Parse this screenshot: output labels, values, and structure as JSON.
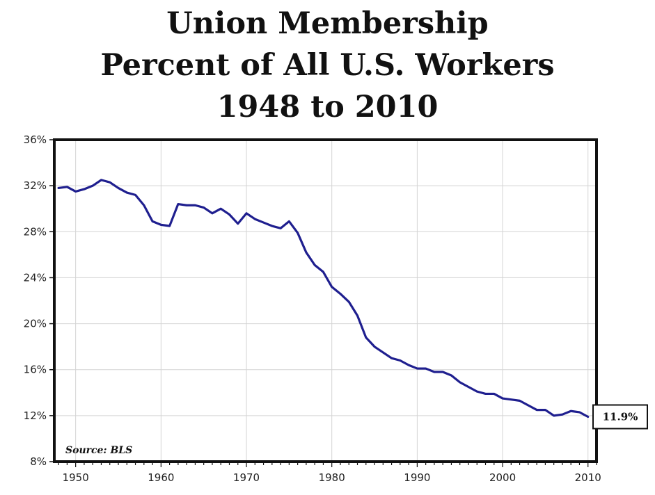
{
  "chart_data": {
    "type": "line",
    "title": [
      "Union Membership",
      "Percent of All U.S. Workers",
      "1948 to 2010"
    ],
    "xlabel": "",
    "ylabel": "",
    "xlim": [
      1947.5,
      2011
    ],
    "ylim": [
      8,
      36
    ],
    "yticks": [
      8,
      12,
      16,
      20,
      24,
      28,
      32,
      36
    ],
    "ytick_labels": [
      "8%",
      "12%",
      "16%",
      "20%",
      "24%",
      "28%",
      "32%",
      "36%"
    ],
    "xticks": [
      1950,
      1960,
      1970,
      1980,
      1990,
      2000,
      2010
    ],
    "xtick_labels": [
      "1950",
      "1960",
      "1970",
      "1980",
      "1990",
      "2000",
      "2010"
    ],
    "grid": true,
    "line_color": "#1f1f8f",
    "source": "Source: BLS",
    "end_label": "11.9%",
    "series": [
      {
        "x": [
          1948,
          1949,
          1950,
          1951,
          1952,
          1953,
          1954,
          1955,
          1956,
          1957,
          1958,
          1959,
          1960,
          1961,
          1962,
          1963,
          1964,
          1965,
          1966,
          1967,
          1968,
          1969,
          1970,
          1971,
          1972,
          1973,
          1974,
          1975,
          1976,
          1977,
          1978,
          1979,
          1980,
          1981,
          1982,
          1983,
          1984,
          1985,
          1986,
          1987,
          1988,
          1989,
          1990,
          1991,
          1992,
          1993,
          1994,
          1995,
          1996,
          1997,
          1998,
          1999,
          2000,
          2001,
          2002,
          2003,
          2004,
          2005,
          2006,
          2007,
          2008,
          2009,
          2010
        ],
        "y": [
          31.8,
          31.9,
          31.5,
          31.7,
          32.0,
          32.5,
          32.3,
          31.8,
          31.4,
          31.2,
          30.3,
          28.9,
          28.6,
          28.5,
          30.4,
          30.3,
          30.3,
          30.1,
          29.6,
          30.0,
          29.5,
          28.7,
          29.6,
          29.1,
          28.8,
          28.5,
          28.3,
          28.9,
          27.9,
          26.2,
          25.1,
          24.5,
          23.2,
          22.6,
          21.9,
          20.7,
          18.8,
          18.0,
          17.5,
          17.0,
          16.8,
          16.4,
          16.1,
          16.1,
          15.8,
          15.8,
          15.5,
          14.9,
          14.5,
          14.1,
          13.9,
          13.9,
          13.5,
          13.4,
          13.3,
          12.9,
          12.5,
          12.5,
          12.0,
          12.1,
          12.4,
          12.3,
          11.9
        ]
      }
    ]
  }
}
